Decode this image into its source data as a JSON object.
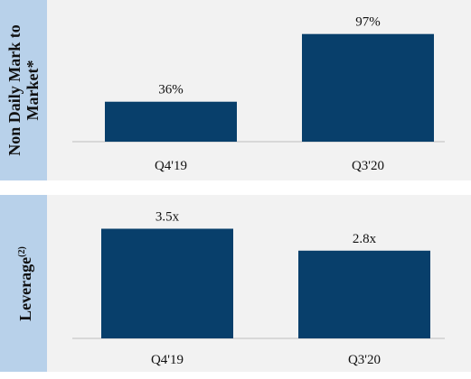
{
  "colors": {
    "bar": "#083f6b",
    "label_panel": "#b8d1ea",
    "plot_bg": "#f2f2f2"
  },
  "chart_data": [
    {
      "type": "bar",
      "ylabel": "Non Daily Mark to Market*",
      "ylabel_lines": [
        "Non Daily Mark to",
        "Market*"
      ],
      "categories": [
        "Q4'19",
        "Q3'20"
      ],
      "values": [
        36,
        97
      ],
      "value_labels": [
        "36%",
        "97%"
      ],
      "ylim": [
        0,
        100
      ],
      "grid": false
    },
    {
      "type": "bar",
      "ylabel": "Leverage(2)",
      "ylabel_main": "Leverage",
      "ylabel_sup": "(2)",
      "categories": [
        "Q4'19",
        "Q3'20"
      ],
      "values": [
        3.5,
        2.8
      ],
      "value_labels": [
        "3.5x",
        "2.8x"
      ],
      "ylim": [
        0,
        3.6
      ],
      "grid": false
    }
  ]
}
